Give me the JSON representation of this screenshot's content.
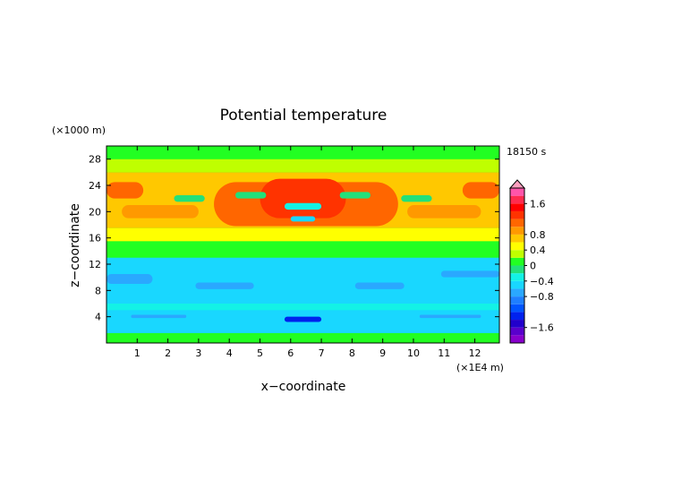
{
  "chart_data": {
    "type": "heatmap",
    "title": "Potential temperature",
    "xlabel": "x−coordinate",
    "ylabel": "z−coordinate",
    "x_unit": "(×1E4 m)",
    "y_unit": "(×1000 m)",
    "time_label": "18150 s",
    "xlim": [
      0,
      12.8
    ],
    "ylim": [
      0,
      30
    ],
    "x_ticks": [
      "1",
      "2",
      "3",
      "4",
      "5",
      "6",
      "7",
      "8",
      "9",
      "10",
      "11",
      "12"
    ],
    "y_ticks": [
      "4",
      "8",
      "12",
      "16",
      "20",
      "24",
      "28"
    ],
    "colorbar_labels": [
      "1.6",
      "0.8",
      "0.4",
      "0",
      "−0.4",
      "−0.8",
      "−1.6"
    ],
    "colorbar_levels": [
      -2.0,
      -1.8,
      -1.6,
      -1.4,
      -1.2,
      -1.0,
      -0.8,
      -0.6,
      -0.4,
      -0.2,
      0,
      0.2,
      0.4,
      0.6,
      0.8,
      1.0,
      1.2,
      1.4,
      1.6,
      1.8,
      2.0
    ],
    "colorbar_colors": [
      "#8800cc",
      "#5a00cc",
      "#2200cc",
      "#0022ee",
      "#0055ff",
      "#1f7fff",
      "#2aa8ff",
      "#19d7ff",
      "#13f2e6",
      "#22e07a",
      "#22ff22",
      "#bfff00",
      "#ffff00",
      "#ffc800",
      "#ff9900",
      "#ff6600",
      "#ff3300",
      "#ff0000",
      "#ff2b4f",
      "#ff55aa"
    ],
    "grid": false,
    "legend": "right colorbar",
    "regions": [
      {
        "x0": 0.0,
        "x1": 12.8,
        "z0": 0.0,
        "z1": 30.0,
        "value": 0.15
      },
      {
        "x0": 0.0,
        "x1": 12.8,
        "z0": 0.0,
        "z1": 1.5,
        "value": 0.05
      },
      {
        "x0": 0.0,
        "x1": 12.8,
        "z0": 1.5,
        "z1": 13.0,
        "value": -0.5
      },
      {
        "x0": 0.0,
        "x1": 12.8,
        "z0": 5.0,
        "z1": 6.0,
        "value": -0.25
      },
      {
        "x0": 0.8,
        "x1": 2.6,
        "z0": 3.8,
        "z1": 4.3,
        "value": -0.7
      },
      {
        "x0": 10.2,
        "x1": 12.2,
        "z0": 3.8,
        "z1": 4.3,
        "value": -0.7
      },
      {
        "x0": 5.8,
        "x1": 7.0,
        "z0": 3.2,
        "z1": 4.0,
        "value": -1.3
      },
      {
        "x0": 2.9,
        "x1": 4.8,
        "z0": 8.2,
        "z1": 9.2,
        "value": -0.7
      },
      {
        "x0": 8.1,
        "x1": 9.7,
        "z0": 8.2,
        "z1": 9.2,
        "value": -0.7
      },
      {
        "x0": 0.0,
        "x1": 1.5,
        "z0": 9.0,
        "z1": 10.5,
        "value": -0.7
      },
      {
        "x0": 10.9,
        "x1": 12.8,
        "z0": 10.0,
        "z1": 11.0,
        "value": -0.7
      },
      {
        "x0": 0.0,
        "x1": 12.8,
        "z0": 13.0,
        "z1": 15.5,
        "value": 0.05
      },
      {
        "x0": 0.0,
        "x1": 12.8,
        "z0": 15.5,
        "z1": 17.5,
        "value": 0.5
      },
      {
        "x0": 0.0,
        "x1": 12.8,
        "z0": 17.5,
        "z1": 26.0,
        "value": 0.6
      },
      {
        "x0": 0.0,
        "x1": 1.2,
        "z0": 22.0,
        "z1": 24.5,
        "value": 1.1
      },
      {
        "x0": 11.6,
        "x1": 12.8,
        "z0": 22.0,
        "z1": 24.5,
        "value": 1.1
      },
      {
        "x0": 3.5,
        "x1": 9.5,
        "z0": 17.8,
        "z1": 24.5,
        "value": 1.05
      },
      {
        "x0": 5.0,
        "x1": 7.8,
        "z0": 19.0,
        "z1": 25.0,
        "value": 1.3
      },
      {
        "x0": 0.5,
        "x1": 3.0,
        "z0": 19.0,
        "z1": 21.0,
        "value": 0.9
      },
      {
        "x0": 9.8,
        "x1": 12.2,
        "z0": 19.0,
        "z1": 21.0,
        "value": 0.9
      },
      {
        "x0": 2.2,
        "x1": 3.2,
        "z0": 21.5,
        "z1": 22.5,
        "value": -0.2
      },
      {
        "x0": 9.6,
        "x1": 10.6,
        "z0": 21.5,
        "z1": 22.5,
        "value": -0.2
      },
      {
        "x0": 4.2,
        "x1": 5.2,
        "z0": 22.0,
        "z1": 23.0,
        "value": -0.2
      },
      {
        "x0": 7.6,
        "x1": 8.6,
        "z0": 22.0,
        "z1": 23.0,
        "value": -0.2
      },
      {
        "x0": 5.8,
        "x1": 7.0,
        "z0": 20.3,
        "z1": 21.3,
        "value": -0.3
      },
      {
        "x0": 6.0,
        "x1": 6.8,
        "z0": 18.5,
        "z1": 19.3,
        "value": -0.5
      },
      {
        "x0": 0.0,
        "x1": 12.8,
        "z0": 26.0,
        "z1": 28.0,
        "value": 0.3
      },
      {
        "x0": 0.0,
        "x1": 12.8,
        "z0": 28.0,
        "z1": 30.0,
        "value": 0.05
      }
    ]
  }
}
